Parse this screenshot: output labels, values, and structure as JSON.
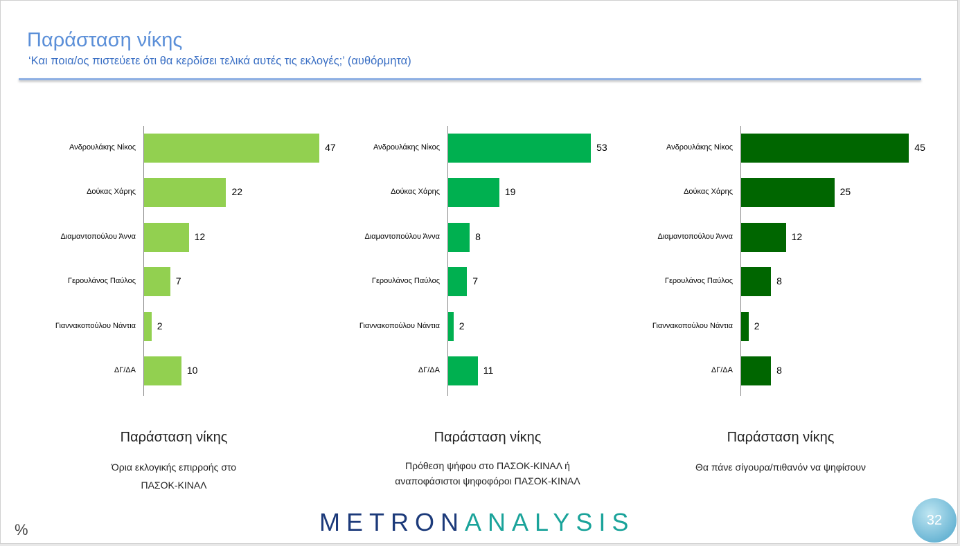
{
  "header": {
    "title": "Παράσταση νίκης",
    "subtitle": "‘Και ποια/ος πιστεύετε ότι θα κερδίσει τελικά αυτές τις εκλογές;’ (αυθόρμητα)"
  },
  "chart_data": [
    {
      "type": "bar",
      "orientation": "horizontal",
      "color": "#92d050",
      "xlim": [
        0,
        52
      ],
      "categories": [
        "Ανδρουλάκης Νίκος",
        "Δούκας Χάρης",
        "Διαμαντοπούλου Άννα",
        "Γερουλάνος Παύλος",
        "Γιαννακοπούλου Νάντια",
        "ΔΓ/ΔΑ"
      ],
      "values": [
        47,
        22,
        12,
        7,
        2,
        10
      ],
      "title": "Παράσταση νίκης",
      "subtitle": [
        "Όρια εκλογικής επιρροής στο",
        "ΠΑΣΟΚ-ΚΙΝΑΛ"
      ]
    },
    {
      "type": "bar",
      "orientation": "horizontal",
      "color": "#00b050",
      "xlim": [
        0,
        72
      ],
      "categories": [
        "Ανδρουλάκης Νίκος",
        "Δούκας Χάρης",
        "Διαμαντοπούλου Άννα",
        "Γερουλάνος Παύλος",
        "Γιαννακοπούλου Νάντια",
        "ΔΓ/ΔΑ"
      ],
      "values": [
        53,
        19,
        8,
        7,
        2,
        11
      ],
      "title": "Παράσταση νίκης",
      "subtitle": [
        "Πρόθεση ψήφου στο ΠΑΣΟΚ-ΚΙΝΑΛ ή",
        "αναποφάσιστοι ψηφοφόροι ΠΑΣΟΚ-ΚΙΝΑΛ"
      ]
    },
    {
      "type": "bar",
      "orientation": "horizontal",
      "color": "#006600",
      "xlim": [
        0,
        52
      ],
      "categories": [
        "Ανδρουλάκης Νίκος",
        "Δούκας Χάρης",
        "Διαμαντοπούλου Άννα",
        "Γερουλάνος Παύλος",
        "Γιαννακοπούλου Νάντια",
        "ΔΓ/ΔΑ"
      ],
      "values": [
        45,
        25,
        12,
        8,
        2,
        8
      ],
      "title": "Παράσταση νίκης",
      "subtitle": [
        "Θα πάνε σίγουρα/πιθανόν να ψηφίσουν"
      ]
    }
  ],
  "footer": {
    "unit": "%",
    "logo_a": "METRON",
    "logo_b": "ANALYSIS",
    "page": "32"
  }
}
